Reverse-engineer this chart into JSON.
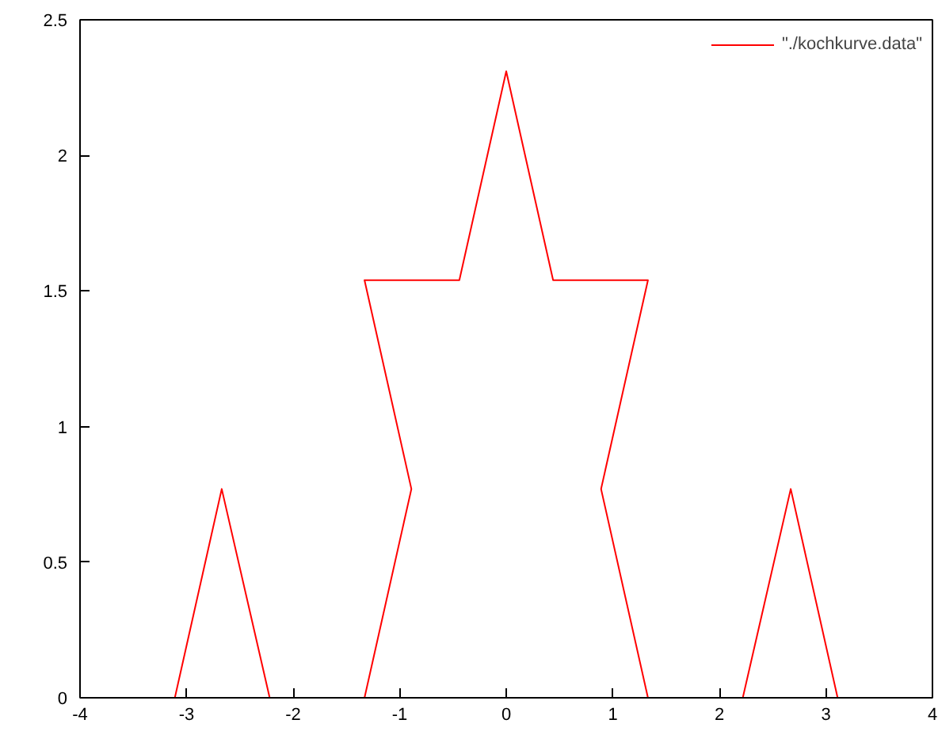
{
  "chart_data": {
    "type": "line",
    "x": [
      -3.11,
      -2.67,
      -2.22,
      -1.33,
      -0.89,
      -1.33,
      -0.44,
      0,
      0.44,
      1.33,
      0.89,
      1.33,
      2.22,
      2.67,
      3.11
    ],
    "series": [
      {
        "name": "\"./kochkurve.data\"",
        "color": "#ff0000",
        "values": [
          0,
          0.77,
          0,
          0,
          0.77,
          1.54,
          1.54,
          2.31,
          1.54,
          1.54,
          0.77,
          0,
          0,
          0.77,
          0
        ]
      }
    ],
    "xlim": [
      -4,
      4
    ],
    "ylim": [
      0,
      2.5
    ],
    "xticks": [
      -4,
      -3,
      -2,
      -1,
      0,
      1,
      2,
      3,
      4
    ],
    "yticks": [
      0,
      0.5,
      1,
      1.5,
      2,
      2.5
    ],
    "grid": false,
    "legend": "top right",
    "marker": "none",
    "line_style": "solid"
  }
}
